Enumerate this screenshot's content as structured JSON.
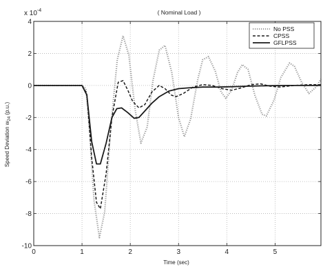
{
  "chart_data": {
    "type": "line",
    "title": "( Nominal Load )",
    "xlabel": "Time (sec)",
    "ylabel_main": "Speed Deviation w",
    "ylabel_sub": "24",
    "ylabel_unit": " (p.u.)",
    "scale_base": "x 10",
    "scale_exponent": "-4",
    "xlim": [
      0,
      5.95
    ],
    "ylim": [
      -10,
      4
    ],
    "xticks": [
      0,
      1,
      2,
      3,
      4,
      5
    ],
    "xtick_labels": [
      "0",
      "1",
      "2",
      "3",
      "4",
      "5"
    ],
    "yticks": [
      4,
      2,
      0,
      -2,
      -4,
      -6,
      -8,
      -10
    ],
    "ytick_labels": [
      "4",
      "2",
      "0",
      "-2",
      "-4",
      "-6",
      "-8",
      "-10"
    ],
    "grid": "dotted",
    "legend_position": "top-right",
    "series": [
      {
        "name": "No PSS",
        "style": "dotted",
        "color": "#9a9a9a",
        "points": [
          [
            0,
            0
          ],
          [
            1,
            0
          ],
          [
            1.08,
            -0.2
          ],
          [
            1.15,
            -2.6
          ],
          [
            1.25,
            -7.2
          ],
          [
            1.36,
            -9.5
          ],
          [
            1.47,
            -7.9
          ],
          [
            1.6,
            -2.5
          ],
          [
            1.73,
            1.6
          ],
          [
            1.85,
            3.1
          ],
          [
            1.97,
            1.9
          ],
          [
            2.1,
            -1.5
          ],
          [
            2.22,
            -3.6
          ],
          [
            2.35,
            -2.6
          ],
          [
            2.47,
            0.3
          ],
          [
            2.6,
            2.2
          ],
          [
            2.72,
            2.5
          ],
          [
            2.86,
            0.8
          ],
          [
            3.0,
            -2.0
          ],
          [
            3.12,
            -3.2
          ],
          [
            3.25,
            -2.1
          ],
          [
            3.4,
            0.4
          ],
          [
            3.5,
            1.6
          ],
          [
            3.62,
            1.8
          ],
          [
            3.76,
            0.9
          ],
          [
            3.88,
            -0.4
          ],
          [
            3.98,
            -0.8
          ],
          [
            4.1,
            -0.3
          ],
          [
            4.22,
            0.8
          ],
          [
            4.32,
            1.3
          ],
          [
            4.44,
            1.0
          ],
          [
            4.58,
            -0.6
          ],
          [
            4.73,
            -1.8
          ],
          [
            4.82,
            -1.9
          ],
          [
            4.98,
            -0.9
          ],
          [
            5.12,
            0.5
          ],
          [
            5.3,
            1.4
          ],
          [
            5.4,
            1.2
          ],
          [
            5.55,
            0.2
          ],
          [
            5.7,
            -0.5
          ],
          [
            5.85,
            -0.1
          ],
          [
            5.95,
            0.4
          ]
        ]
      },
      {
        "name": "CPSS",
        "style": "dashed",
        "color": "#1a1a1a",
        "points": [
          [
            0,
            0
          ],
          [
            1,
            0
          ],
          [
            1.1,
            -0.5
          ],
          [
            1.2,
            -4.5
          ],
          [
            1.3,
            -7.3
          ],
          [
            1.38,
            -7.7
          ],
          [
            1.5,
            -5.5
          ],
          [
            1.62,
            -2.0
          ],
          [
            1.75,
            0.2
          ],
          [
            1.85,
            0.3
          ],
          [
            1.95,
            -0.3
          ],
          [
            2.05,
            -1.0
          ],
          [
            2.18,
            -1.4
          ],
          [
            2.3,
            -1.2
          ],
          [
            2.45,
            -0.4
          ],
          [
            2.6,
            0.0
          ],
          [
            2.72,
            -0.2
          ],
          [
            2.85,
            -0.6
          ],
          [
            2.95,
            -0.7
          ],
          [
            3.1,
            -0.5
          ],
          [
            3.3,
            -0.1
          ],
          [
            3.5,
            0.05
          ],
          [
            3.7,
            0.0
          ],
          [
            3.9,
            -0.2
          ],
          [
            4.1,
            -0.3
          ],
          [
            4.3,
            -0.15
          ],
          [
            4.5,
            0.05
          ],
          [
            4.7,
            0.1
          ],
          [
            4.9,
            -0.05
          ],
          [
            5.1,
            -0.1
          ],
          [
            5.4,
            0.0
          ],
          [
            5.7,
            0.05
          ],
          [
            5.95,
            0.05
          ]
        ]
      },
      {
        "name": "GFLPSS",
        "style": "solid",
        "color": "#1a1a1a",
        "points": [
          [
            0,
            0
          ],
          [
            1,
            0
          ],
          [
            1.1,
            -0.6
          ],
          [
            1.2,
            -3.5
          ],
          [
            1.3,
            -4.9
          ],
          [
            1.38,
            -4.9
          ],
          [
            1.5,
            -3.6
          ],
          [
            1.62,
            -2.0
          ],
          [
            1.72,
            -1.45
          ],
          [
            1.82,
            -1.4
          ],
          [
            1.95,
            -1.7
          ],
          [
            2.08,
            -2.05
          ],
          [
            2.18,
            -2.0
          ],
          [
            2.3,
            -1.6
          ],
          [
            2.45,
            -1.1
          ],
          [
            2.6,
            -0.7
          ],
          [
            2.8,
            -0.35
          ],
          [
            3.0,
            -0.2
          ],
          [
            3.2,
            -0.15
          ],
          [
            3.5,
            -0.1
          ],
          [
            3.8,
            -0.1
          ],
          [
            4.1,
            -0.08
          ],
          [
            4.4,
            -0.05
          ],
          [
            4.8,
            -0.02
          ],
          [
            5.2,
            0.0
          ],
          [
            5.95,
            0.0
          ]
        ]
      }
    ]
  }
}
